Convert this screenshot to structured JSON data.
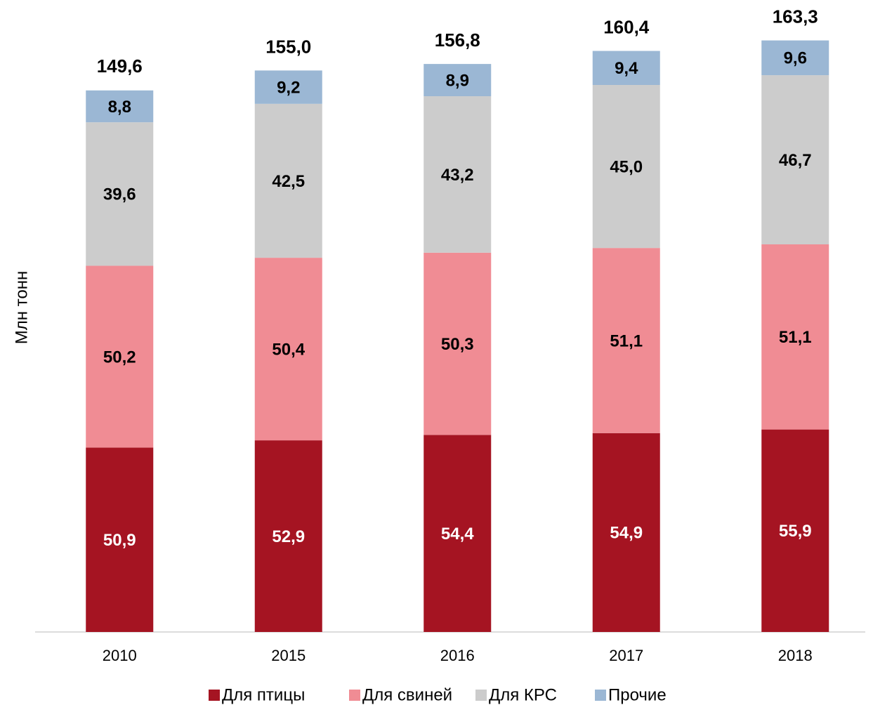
{
  "chart_data": {
    "type": "stacked_bar",
    "y_label": "Млн тонн",
    "categories": [
      "2010",
      "2015",
      "2016",
      "2017",
      "2018"
    ],
    "series": [
      {
        "name": "Для птицы",
        "color": "#a51422",
        "values": [
          50.9,
          52.9,
          54.4,
          54.9,
          55.9
        ],
        "value_labels": [
          "50,9",
          "52,9",
          "54,4",
          "54,9",
          "55,9"
        ]
      },
      {
        "name": "Для свиней",
        "color": "#f08c94",
        "values": [
          50.2,
          50.4,
          50.3,
          51.1,
          51.1
        ],
        "value_labels": [
          "50,2",
          "50,4",
          "50,3",
          "51,1",
          "51,1"
        ]
      },
      {
        "name": "Для КРС",
        "color": "#cccccc",
        "values": [
          39.6,
          42.5,
          43.2,
          45.0,
          46.7
        ],
        "value_labels": [
          "39,6",
          "42,5",
          "43,2",
          "45,0",
          "46,7"
        ]
      },
      {
        "name": "Прочие",
        "color": "#9bb7d4",
        "values": [
          8.8,
          9.2,
          8.9,
          9.4,
          9.6
        ],
        "value_labels": [
          "8,8",
          "9,2",
          "8,9",
          "9,4",
          "9,6"
        ]
      }
    ],
    "totals": [
      149.6,
      155.0,
      156.8,
      160.4,
      163.3
    ],
    "total_labels": [
      "149,6",
      "155,0",
      "156,8",
      "160,4",
      "163,3"
    ],
    "ylim": [
      0,
      170
    ]
  }
}
